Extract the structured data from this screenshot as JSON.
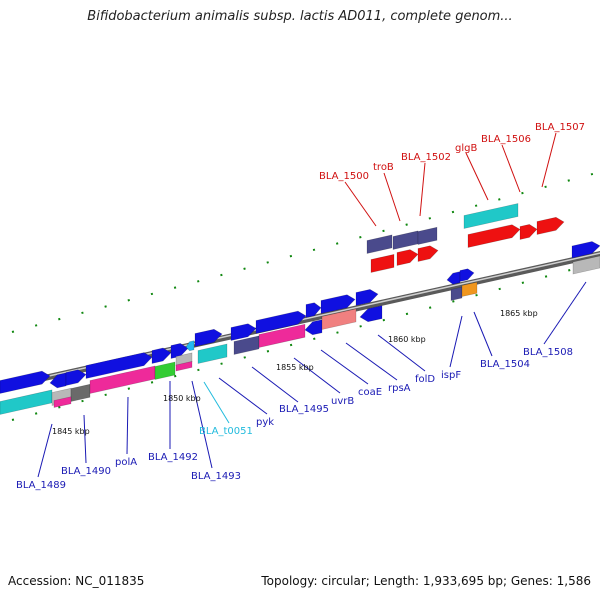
{
  "title": "Bifidobacterium animalis subsp. lactis AD011, complete genom...",
  "footer": {
    "accession": "Accession: NC_011835",
    "summary": "Topology: circular; Length: 1,933,695 bp; Genes: 1,586"
  },
  "colors": {
    "blue": "#1010e0",
    "cyan": "#20c8c8",
    "pink": "#ee2a9a",
    "purple": "#4a4a8c",
    "red": "#ee1111",
    "green": "#33cc33",
    "gray": "#b8b8b8",
    "darkgray": "#6a6a6a",
    "salmon": "#f08080",
    "orange": "#f0961e",
    "lightblue": "#22b8f0",
    "label_blue": "#1a1ab4",
    "label_red": "#d01010",
    "label_cyan": "#22bbdd"
  },
  "scale": [
    {
      "label": "1845 kbp"
    },
    {
      "label": "1850 kbp"
    },
    {
      "label": "1855 kbp"
    },
    {
      "label": "1860 kbp"
    },
    {
      "label": "1865 kbp"
    }
  ],
  "gene_labels": [
    {
      "name": "BLA_1489",
      "color": "label_blue"
    },
    {
      "name": "BLA_1490",
      "color": "label_blue"
    },
    {
      "name": "polA",
      "color": "label_blue"
    },
    {
      "name": "BLA_1492",
      "color": "label_blue"
    },
    {
      "name": "BLA_t0051",
      "color": "label_cyan"
    },
    {
      "name": "BLA_1493",
      "color": "label_blue"
    },
    {
      "name": "pyk",
      "color": "label_blue"
    },
    {
      "name": "BLA_1495",
      "color": "label_blue"
    },
    {
      "name": "uvrB",
      "color": "label_blue"
    },
    {
      "name": "coaE",
      "color": "label_blue"
    },
    {
      "name": "rpsA",
      "color": "label_blue"
    },
    {
      "name": "folD",
      "color": "label_blue"
    },
    {
      "name": "ispF",
      "color": "label_blue"
    },
    {
      "name": "BLA_1504",
      "color": "label_blue"
    },
    {
      "name": "BLA_1508",
      "color": "label_blue"
    },
    {
      "name": "BLA_1500",
      "color": "label_red"
    },
    {
      "name": "troB",
      "color": "label_red"
    },
    {
      "name": "BLA_1502",
      "color": "label_red"
    },
    {
      "name": "glgB",
      "color": "label_red"
    },
    {
      "name": "BLA_1506",
      "color": "label_red"
    },
    {
      "name": "BLA_1507",
      "color": "label_red"
    }
  ]
}
